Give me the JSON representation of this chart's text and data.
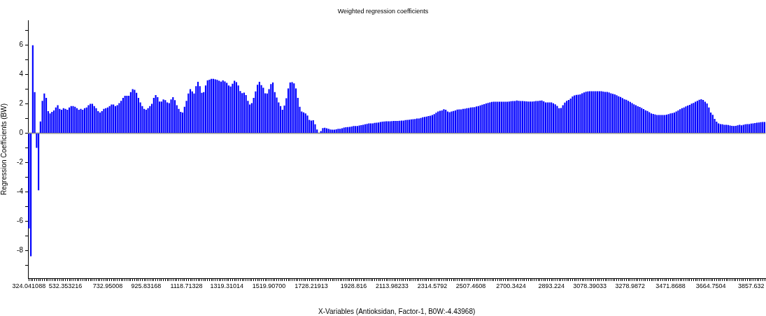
{
  "chart_data": {
    "type": "bar",
    "title": "Weighted regression coefficients",
    "xlabel": "X-Variables (Antioksidan, Factor-1, B0W:-4.43968)",
    "ylabel": "Regression Coefficients (BW)",
    "color": "#0000ff",
    "ylim": [
      -9.9,
      7.7
    ],
    "yticks": [
      {
        "value": -9,
        "label": null
      },
      -8,
      {
        "value": -7,
        "label": null
      },
      -6,
      {
        "value": -5,
        "label": null
      },
      -4,
      {
        "value": -3,
        "label": null
      },
      -2,
      {
        "value": -1,
        "label": null
      },
      0,
      {
        "value": 1,
        "label": null
      },
      2,
      {
        "value": 3,
        "label": null
      },
      4,
      {
        "value": 5,
        "label": null
      },
      6,
      {
        "value": 7,
        "label": null
      }
    ],
    "ref_lines": [
      {
        "axis": "y",
        "value": 0,
        "color": "#999999"
      }
    ],
    "categories": [
      "324.041088",
      null,
      null,
      null,
      null,
      null,
      null,
      null,
      null,
      null,
      null,
      null,
      null,
      null,
      null,
      null,
      null,
      null,
      null,
      "532.353216",
      null,
      null,
      null,
      null,
      null,
      null,
      null,
      null,
      null,
      null,
      null,
      null,
      null,
      null,
      null,
      null,
      null,
      null,
      null,
      null,
      null,
      "732.95008",
      null,
      null,
      null,
      null,
      null,
      null,
      null,
      null,
      null,
      null,
      null,
      null,
      null,
      null,
      null,
      null,
      null,
      null,
      null,
      "925.83168",
      null,
      null,
      null,
      null,
      null,
      null,
      null,
      null,
      null,
      null,
      null,
      null,
      null,
      null,
      null,
      null,
      null,
      null,
      null,
      null,
      "1118.71328",
      null,
      null,
      null,
      null,
      null,
      null,
      null,
      null,
      null,
      null,
      null,
      null,
      null,
      null,
      null,
      null,
      null,
      null,
      null,
      null,
      "1319.31014",
      null,
      null,
      null,
      null,
      null,
      null,
      null,
      null,
      null,
      null,
      null,
      null,
      null,
      null,
      null,
      null,
      null,
      null,
      null,
      null,
      null,
      "1519.90700",
      null,
      null,
      null,
      null,
      null,
      null,
      null,
      null,
      null,
      null,
      null,
      null,
      null,
      null,
      null,
      null,
      null,
      null,
      null,
      null,
      null,
      "1728.21913",
      null,
      null,
      null,
      null,
      null,
      null,
      null,
      null,
      null,
      null,
      null,
      null,
      null,
      null,
      null,
      null,
      null,
      null,
      null,
      null,
      null,
      "1928.816",
      null,
      null,
      null,
      null,
      null,
      null,
      null,
      null,
      null,
      null,
      null,
      null,
      null,
      null,
      null,
      null,
      null,
      null,
      null,
      "2113.98233",
      null,
      null,
      null,
      null,
      null,
      null,
      null,
      null,
      null,
      null,
      null,
      null,
      null,
      null,
      null,
      null,
      null,
      null,
      null,
      null,
      "2314.5792",
      null,
      null,
      null,
      null,
      null,
      null,
      null,
      null,
      null,
      null,
      null,
      null,
      null,
      null,
      null,
      null,
      null,
      null,
      null,
      "2507.4608",
      null,
      null,
      null,
      null,
      null,
      null,
      null,
      null,
      null,
      null,
      null,
      null,
      null,
      null,
      null,
      null,
      null,
      null,
      null,
      null,
      "2700.3424",
      null,
      null,
      null,
      null,
      null,
      null,
      null,
      null,
      null,
      null,
      null,
      null,
      null,
      null,
      null,
      null,
      null,
      null,
      null,
      null,
      "2893.224",
      null,
      null,
      null,
      null,
      null,
      null,
      null,
      null,
      null,
      null,
      null,
      null,
      null,
      null,
      null,
      null,
      null,
      null,
      null,
      "3078.39033",
      null,
      null,
      null,
      null,
      null,
      null,
      null,
      null,
      null,
      null,
      null,
      null,
      null,
      null,
      null,
      null,
      null,
      null,
      null,
      null,
      "3278.9872",
      null,
      null,
      null,
      null,
      null,
      null,
      null,
      null,
      null,
      null,
      null,
      null,
      null,
      null,
      null,
      null,
      null,
      null,
      null,
      null,
      "3471.8688",
      null,
      null,
      null,
      null,
      null,
      null,
      null,
      null,
      null,
      null,
      null,
      null,
      null,
      null,
      null,
      null,
      null,
      null,
      null,
      null,
      "3664.7504",
      null,
      null,
      null,
      null,
      null,
      null,
      null,
      null,
      null,
      null,
      null,
      null,
      null,
      null,
      null,
      null,
      null,
      null,
      null,
      null,
      "3857.632",
      null,
      null,
      null,
      null,
      null,
      null,
      null
    ],
    "values": [
      -6.5,
      -8.4,
      6.0,
      2.8,
      -1.0,
      -3.9,
      0.8,
      2.2,
      2.7,
      2.4,
      1.5,
      1.35,
      1.45,
      1.55,
      1.75,
      1.9,
      1.65,
      1.6,
      1.7,
      1.65,
      1.6,
      1.75,
      1.85,
      1.85,
      1.8,
      1.7,
      1.6,
      1.65,
      1.6,
      1.7,
      1.75,
      1.9,
      2.0,
      2.0,
      1.85,
      1.7,
      1.5,
      1.4,
      1.5,
      1.65,
      1.7,
      1.75,
      1.85,
      1.95,
      1.95,
      1.85,
      1.9,
      2.05,
      2.2,
      2.4,
      2.55,
      2.55,
      2.55,
      2.8,
      3.0,
      2.95,
      2.75,
      2.4,
      2.1,
      1.85,
      1.65,
      1.6,
      1.7,
      1.85,
      2.0,
      2.4,
      2.6,
      2.45,
      2.15,
      2.15,
      2.3,
      2.25,
      2.1,
      2.05,
      2.3,
      2.45,
      2.25,
      1.9,
      1.65,
      1.45,
      1.4,
      1.8,
      2.2,
      2.7,
      3.0,
      2.85,
      2.7,
      3.2,
      3.5,
      3.2,
      2.75,
      2.8,
      3.25,
      3.6,
      3.65,
      3.7,
      3.7,
      3.67,
      3.63,
      3.57,
      3.52,
      3.6,
      3.53,
      3.43,
      3.25,
      3.18,
      3.37,
      3.57,
      3.48,
      3.25,
      2.87,
      2.73,
      2.76,
      2.6,
      2.2,
      1.95,
      2.05,
      2.4,
      2.85,
      3.3,
      3.5,
      3.28,
      3.1,
      2.72,
      2.7,
      3.0,
      3.35,
      3.45,
      2.8,
      2.43,
      2.1,
      1.85,
      1.6,
      1.88,
      2.38,
      3.05,
      3.45,
      3.48,
      3.4,
      3.05,
      2.4,
      1.8,
      1.48,
      1.42,
      1.35,
      1.2,
      0.9,
      0.86,
      0.88,
      0.6,
      0.25,
      0.02,
      0.14,
      0.34,
      0.37,
      0.33,
      0.3,
      0.25,
      0.24,
      0.24,
      0.26,
      0.29,
      0.3,
      0.33,
      0.38,
      0.4,
      0.41,
      0.43,
      0.45,
      0.48,
      0.48,
      0.49,
      0.52,
      0.55,
      0.57,
      0.6,
      0.63,
      0.66,
      0.67,
      0.67,
      0.7,
      0.71,
      0.72,
      0.76,
      0.78,
      0.8,
      0.81,
      0.81,
      0.81,
      0.82,
      0.83,
      0.83,
      0.83,
      0.84,
      0.85,
      0.86,
      0.89,
      0.9,
      0.91,
      0.94,
      0.95,
      0.96,
      1.0,
      1.0,
      1.04,
      1.08,
      1.11,
      1.13,
      1.16,
      1.19,
      1.24,
      1.3,
      1.39,
      1.47,
      1.52,
      1.55,
      1.63,
      1.6,
      1.47,
      1.43,
      1.47,
      1.51,
      1.55,
      1.61,
      1.62,
      1.62,
      1.65,
      1.67,
      1.7,
      1.72,
      1.75,
      1.76,
      1.77,
      1.82,
      1.85,
      1.89,
      1.94,
      1.98,
      2.02,
      2.06,
      2.1,
      2.13,
      2.14,
      2.14,
      2.14,
      2.14,
      2.14,
      2.14,
      2.14,
      2.14,
      2.16,
      2.18,
      2.19,
      2.19,
      2.23,
      2.2,
      2.19,
      2.19,
      2.18,
      2.17,
      2.16,
      2.15,
      2.15,
      2.17,
      2.19,
      2.19,
      2.22,
      2.23,
      2.17,
      2.1,
      2.1,
      2.1,
      2.09,
      2.04,
      1.97,
      1.86,
      1.7,
      1.71,
      1.9,
      2.08,
      2.2,
      2.26,
      2.36,
      2.5,
      2.57,
      2.61,
      2.62,
      2.64,
      2.71,
      2.77,
      2.82,
      2.85,
      2.86,
      2.86,
      2.86,
      2.86,
      2.86,
      2.86,
      2.86,
      2.84,
      2.81,
      2.81,
      2.77,
      2.72,
      2.68,
      2.64,
      2.58,
      2.51,
      2.46,
      2.39,
      2.31,
      2.27,
      2.2,
      2.13,
      2.05,
      1.97,
      1.9,
      1.83,
      1.78,
      1.71,
      1.64,
      1.56,
      1.51,
      1.43,
      1.35,
      1.31,
      1.27,
      1.24,
      1.24,
      1.24,
      1.24,
      1.24,
      1.26,
      1.3,
      1.34,
      1.37,
      1.41,
      1.47,
      1.55,
      1.63,
      1.7,
      1.75,
      1.82,
      1.88,
      1.93,
      2.01,
      2.06,
      2.14,
      2.2,
      2.27,
      2.31,
      2.26,
      2.14,
      2.02,
      1.75,
      1.4,
      1.25,
      0.97,
      0.78,
      0.67,
      0.62,
      0.6,
      0.57,
      0.57,
      0.56,
      0.52,
      0.5,
      0.48,
      0.5,
      0.53,
      0.57,
      0.53,
      0.57,
      0.6,
      0.62,
      0.62,
      0.65,
      0.67,
      0.69,
      0.71,
      0.73,
      0.75,
      0.76,
      0.76
    ]
  }
}
